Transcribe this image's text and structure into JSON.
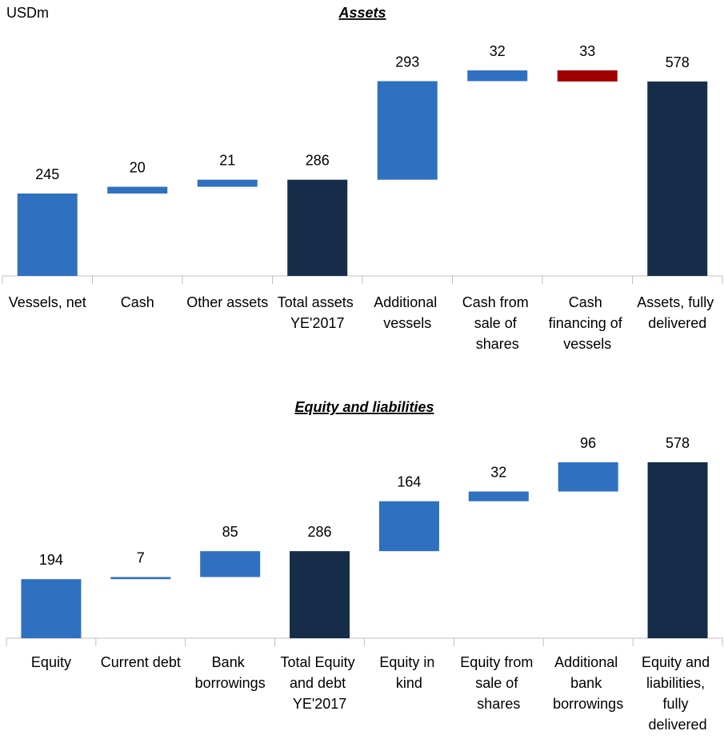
{
  "chart_data": [
    {
      "type": "waterfall",
      "unit": "USDm",
      "title": "Assets",
      "categories": [
        "Vessels, net",
        "Cash",
        "Other assets",
        "Total assets YE'2017",
        "Additional vessels",
        "Cash from sale of shares",
        "Cash financing of vessels",
        "Assets, fully delivered"
      ],
      "values": [
        245,
        20,
        21,
        286,
        293,
        32,
        -33,
        578
      ],
      "value_labels": [
        "245",
        "20",
        "21",
        "286",
        "293",
        "32",
        "33",
        "578"
      ],
      "totals": [
        3,
        7
      ],
      "colors": [
        "#3070c0",
        "#3070c0",
        "#3070c0",
        "#162d4a",
        "#3070c0",
        "#3070c0",
        "#a00000",
        "#162d4a"
      ]
    },
    {
      "type": "waterfall",
      "title": "Equity and liabilities",
      "categories": [
        "Equity",
        "Current debt",
        "Bank borrowings",
        "Total Equity and debt YE'2017",
        "Equity in kind",
        "Equity from sale of shares",
        "Additional bank borrowings",
        "Equity and liabilities, fully delivered"
      ],
      "values": [
        194,
        7,
        85,
        286,
        164,
        32,
        96,
        578
      ],
      "totals": [
        3,
        7
      ],
      "colors": [
        "#3070c0",
        "#3070c0",
        "#3070c0",
        "#162d4a",
        "#3070c0",
        "#3070c0",
        "#3070c0",
        "#162d4a"
      ]
    }
  ]
}
